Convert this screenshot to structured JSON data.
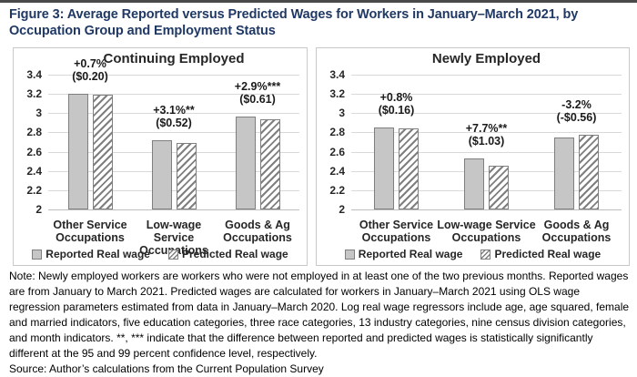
{
  "page": {
    "title": "Figure 3: Average Reported versus Predicted Wages for Workers in January–March 2021, by Occupation Group and Employment Status"
  },
  "colors": {
    "title_navy": "#1f3864",
    "reported_fill": "#c6c6c6",
    "bar_border": "#7f7f7f",
    "gridline": "#d9d9d9",
    "panel_border": "#c9c9c9",
    "chart_text": "#262626"
  },
  "chart_data": [
    {
      "type": "bar",
      "title": "Continuing Employed",
      "categories": [
        [
          "Other Service",
          "Occupations"
        ],
        [
          "Low-wage Service",
          "Occupations"
        ],
        [
          "Goods & Ag",
          "Occupations"
        ]
      ],
      "series": [
        {
          "name": "Reported Real wage",
          "style": "solid",
          "values": [
            3.2,
            2.72,
            2.97
          ]
        },
        {
          "name": "Predicted Real wage",
          "style": "hatched",
          "values": [
            3.19,
            2.69,
            2.94
          ]
        }
      ],
      "annotations": [
        [
          "+0.7%",
          "($0.20)"
        ],
        [
          "+3.1%**",
          "($0.52)"
        ],
        [
          "+2.9%***",
          "($0.61)"
        ]
      ],
      "ylim": [
        2,
        3.4
      ],
      "yticks": [
        "3.4",
        "3.2",
        "3",
        "2.8",
        "2.6",
        "2.4",
        "2.2",
        "2"
      ],
      "grid": true,
      "legend_position": "bottom"
    },
    {
      "type": "bar",
      "title": "Newly Employed",
      "categories": [
        [
          "Other Service",
          "Occupations"
        ],
        [
          "Low-wage Service",
          "Occupations"
        ],
        [
          "Goods & Ag",
          "Occupations"
        ]
      ],
      "series": [
        {
          "name": "Reported Real wage",
          "style": "solid",
          "values": [
            2.85,
            2.53,
            2.75
          ]
        },
        {
          "name": "Predicted Real wage",
          "style": "hatched",
          "values": [
            2.84,
            2.45,
            2.78
          ]
        }
      ],
      "annotations": [
        [
          "+0.8%",
          "($0.16)"
        ],
        [
          "+7.7%**",
          "($1.03)"
        ],
        [
          "-3.2%",
          "(-$0.56)"
        ]
      ],
      "ylim": [
        2,
        3.4
      ],
      "yticks": [
        "3.4",
        "3.2",
        "3",
        "2.8",
        "2.6",
        "2.4",
        "2.2",
        "2"
      ],
      "grid": true,
      "legend_position": "bottom"
    }
  ],
  "note": {
    "text": "Note: Newly employed workers are workers who were not employed in at least one of the two previous months. Reported wages are from January to March 2021. Predicted wages are calculated for workers in January–March 2021 using OLS wage regression parameters estimated from data in January–March 2020. Log real wage regressors include age, age squared, female and married indicators, five education categories, three race categories, 13 industry categories, nine census division categories, and month indicators. **, *** indicate that the difference between reported and predicted wages is statistically significantly different at the 95 and 99 percent confidence level, respectively."
  },
  "source": {
    "text": "Source: Author’s calculations from the Current Population Survey"
  }
}
